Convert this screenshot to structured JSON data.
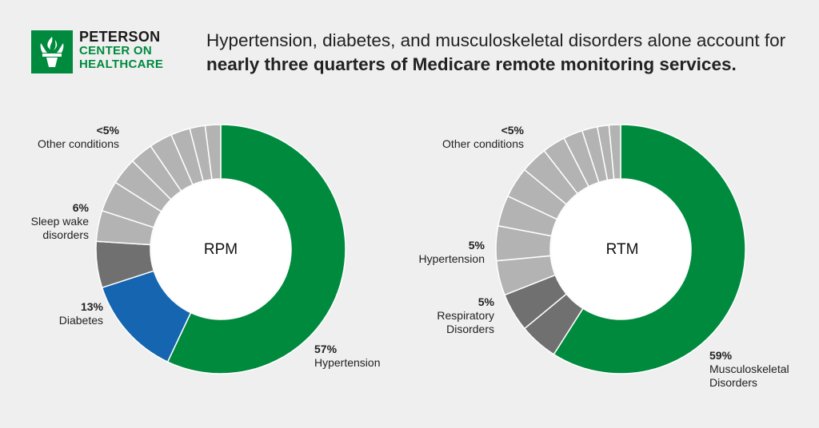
{
  "brand": {
    "line1": "PETERSON",
    "line2": "CENTER ON",
    "line3": "HEALTHCARE"
  },
  "headline": {
    "normal": "Hypertension, diabetes, and musculoskeletal disorders alone account for ",
    "bold": "nearly three quarters of Medicare remote monitoring services."
  },
  "colors": {
    "green": "#008a3e",
    "blue": "#1565b0",
    "dark_gray": "#707070",
    "mid_gray": "#8c8c8c",
    "light_gray": "#b3b3b3"
  },
  "chart_data": [
    {
      "type": "pie",
      "center_label": "RPM",
      "slices": [
        {
          "name": "Hypertension",
          "value": 57,
          "color": "#008a3e"
        },
        {
          "name": "Diabetes",
          "value": 13,
          "color": "#1565b0"
        },
        {
          "name": "Sleep wake disorders",
          "value": 6,
          "color": "#707070"
        },
        {
          "name": "Other conditions",
          "value": 4,
          "color": "#b3b3b3"
        },
        {
          "name": "Other conditions",
          "value": 4,
          "color": "#b3b3b3"
        },
        {
          "name": "Other conditions",
          "value": 3.5,
          "color": "#b3b3b3"
        },
        {
          "name": "Other conditions",
          "value": 3,
          "color": "#b3b3b3"
        },
        {
          "name": "Other conditions",
          "value": 3,
          "color": "#b3b3b3"
        },
        {
          "name": "Other conditions",
          "value": 2.5,
          "color": "#b3b3b3"
        },
        {
          "name": "Other conditions",
          "value": 2,
          "color": "#b3b3b3"
        },
        {
          "name": "Other conditions",
          "value": 2,
          "color": "#b3b3b3"
        }
      ],
      "labels": [
        {
          "pct": "57%",
          "text": "Hypertension"
        },
        {
          "pct": "13%",
          "text": "Diabetes"
        },
        {
          "pct": "6%",
          "text1": "Sleep wake",
          "text2": "disorders"
        },
        {
          "pct": "<5%",
          "text": "Other conditions"
        }
      ]
    },
    {
      "type": "pie",
      "center_label": "RTM",
      "slices": [
        {
          "name": "Musculoskeletal Disorders",
          "value": 59,
          "color": "#008a3e"
        },
        {
          "name": "Respiratory Disorders",
          "value": 5,
          "color": "#707070"
        },
        {
          "name": "Hypertension",
          "value": 5,
          "color": "#707070"
        },
        {
          "name": "Other conditions",
          "value": 4.5,
          "color": "#b3b3b3"
        },
        {
          "name": "Other conditions",
          "value": 4.5,
          "color": "#b3b3b3"
        },
        {
          "name": "Other conditions",
          "value": 4,
          "color": "#b3b3b3"
        },
        {
          "name": "Other conditions",
          "value": 4,
          "color": "#b3b3b3"
        },
        {
          "name": "Other conditions",
          "value": 3.5,
          "color": "#b3b3b3"
        },
        {
          "name": "Other conditions",
          "value": 3,
          "color": "#b3b3b3"
        },
        {
          "name": "Other conditions",
          "value": 2.5,
          "color": "#b3b3b3"
        },
        {
          "name": "Other conditions",
          "value": 2,
          "color": "#b3b3b3"
        },
        {
          "name": "Other conditions",
          "value": 1.5,
          "color": "#b3b3b3"
        },
        {
          "name": "Other conditions",
          "value": 1.5,
          "color": "#b3b3b3"
        }
      ],
      "labels": [
        {
          "pct": "59%",
          "text1": "Musculoskeletal",
          "text2": "Disorders"
        },
        {
          "pct": "5%",
          "text1": "Respiratory",
          "text2": "Disorders"
        },
        {
          "pct": "5%",
          "text": "Hypertension"
        },
        {
          "pct": "<5%",
          "text": "Other conditions"
        }
      ]
    }
  ]
}
